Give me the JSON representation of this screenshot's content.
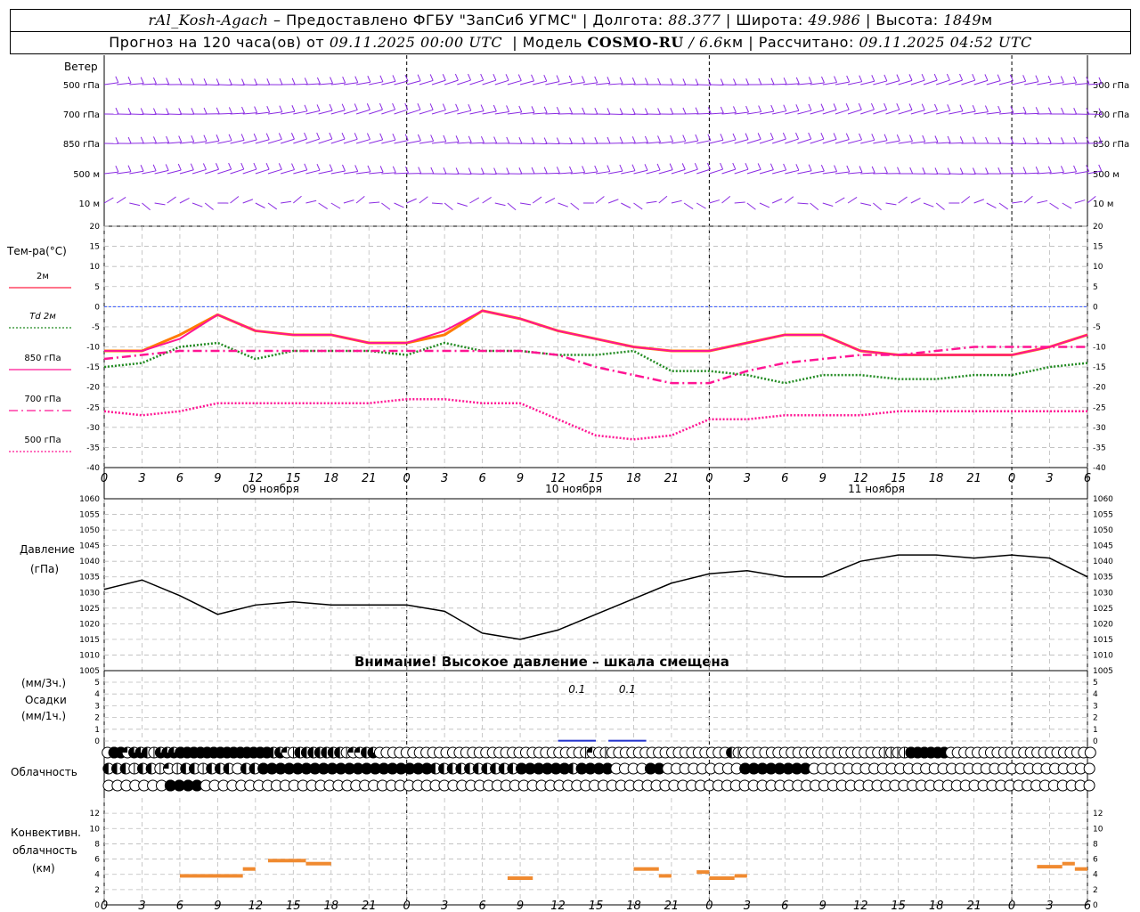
{
  "header": {
    "station": "rAl_Kosh-Agach",
    "provider": "– Предоставлено ФГБУ \"ЗапСиб УГМС\"",
    "lon_label": "Долгота:",
    "lon": "88.377",
    "lat_label": "Широта:",
    "lat": "49.986",
    "alt_label": "Высота:",
    "alt": "1849",
    "alt_unit": "м",
    "forecast_prefix": "Прогноз на 120 часа(ов) от",
    "forecast_time": "09.11.2025 00:00 UTC",
    "model_prefix": "Модель",
    "model": "COSMO-RU",
    "model_res": "/ 6.6",
    "model_res_unit": "км",
    "computed_prefix": "Рассчитано:",
    "computed_time": "09.11.2025 04:52 UTC"
  },
  "labels": {
    "wind": "Ветер",
    "temp": "Тем-ра(°С)",
    "pressure1": "Давление",
    "pressure2": "(гПа)",
    "precip1": "(мм/3ч.)",
    "precip2": "Осадки",
    "precip3": "(мм/1ч.)",
    "cloud": "Облачность",
    "conv1": "Конвективн.",
    "conv2": "облачность",
    "conv3": "(км)",
    "warning": "Внимание! Высокое давление – шкала смещена"
  },
  "wind_levels": [
    "500 гПа",
    "700 гПа",
    "850 гПа",
    "500 м",
    "10 м"
  ],
  "temp_legend": [
    {
      "label": "2м",
      "color": "#ff2244",
      "style": "solid"
    },
    {
      "label": "Td 2м",
      "color": "#228b22",
      "style": "dotted"
    },
    {
      "label": "850 гПа",
      "color": "#ff1493",
      "style": "solid"
    },
    {
      "label": "700 гПа",
      "color": "#ff1493",
      "style": "dashdot"
    },
    {
      "label": "500 гПа",
      "color": "#ff1493",
      "style": "dotted"
    }
  ],
  "hour_ticks": [
    "0",
    "3",
    "6",
    "9",
    "12",
    "15",
    "18",
    "21",
    "0",
    "3",
    "6",
    "9",
    "12",
    "15",
    "18",
    "21",
    "0",
    "3",
    "6",
    "9",
    "12",
    "15",
    "18",
    "21",
    "0",
    "3",
    "6"
  ],
  "day_labels": [
    "09 ноября",
    "10 ноября",
    "11 ноября"
  ],
  "precip_labels": [
    "0.1",
    "0.1"
  ],
  "colors": {
    "wind": "#8a2be2",
    "pressure": "#000000",
    "convective": "#f08a30",
    "precip": "#2233cc",
    "zero_line": "#3355ff"
  },
  "chart_data": [
    {
      "type": "line",
      "title": "Тем-ра(°С)",
      "x_hours": [
        0,
        3,
        6,
        9,
        12,
        15,
        18,
        21,
        24,
        27,
        30,
        33,
        36,
        39,
        42,
        45,
        48,
        51,
        54,
        57,
        60,
        63,
        66,
        69,
        72,
        75,
        78
      ],
      "ylim": [
        -40,
        20
      ],
      "series": [
        {
          "name": "2м",
          "values": [
            -11,
            -11,
            -7,
            -2,
            -6,
            -7,
            -7,
            -9,
            -9,
            -7,
            -1,
            -3,
            -6,
            -8,
            -10,
            -11,
            -11,
            -9,
            -7,
            -7,
            -11,
            -12,
            -12,
            -12,
            -12,
            -10,
            -7
          ]
        },
        {
          "name": "Td 2м",
          "values": [
            -15,
            -14,
            -10,
            -9,
            -13,
            -11,
            -11,
            -11,
            -12,
            -9,
            -11,
            -11,
            -12,
            -12,
            -11,
            -16,
            -16,
            -17,
            -19,
            -17,
            -17,
            -18,
            -18,
            -17,
            -17,
            -15,
            -14
          ]
        },
        {
          "name": "850 гПа",
          "values": [
            -11,
            -11,
            -8,
            -2,
            -6,
            -7,
            -7,
            -9,
            -9,
            -6,
            -1,
            -3,
            -6,
            -8,
            -10,
            -11,
            -11,
            -9,
            -7,
            -7,
            -11,
            -12,
            -12,
            -12,
            -12,
            -10,
            -7
          ]
        },
        {
          "name": "700 гПа",
          "values": [
            -13,
            -12,
            -11,
            -11,
            -11,
            -11,
            -11,
            -11,
            -11,
            -11,
            -11,
            -11,
            -12,
            -15,
            -17,
            -19,
            -19,
            -16,
            -14,
            -13,
            -12,
            -12,
            -11,
            -10,
            -10,
            -10,
            -10
          ]
        },
        {
          "name": "500 гПа",
          "values": [
            -26,
            -27,
            -26,
            -24,
            -24,
            -24,
            -24,
            -24,
            -23,
            -23,
            -24,
            -24,
            -28,
            -32,
            -33,
            -32,
            -28,
            -28,
            -27,
            -27,
            -27,
            -26,
            -26,
            -26,
            -26,
            -26,
            -26
          ]
        }
      ]
    },
    {
      "type": "line",
      "title": "Давление (гПа)",
      "x_hours": [
        0,
        3,
        6,
        9,
        12,
        15,
        18,
        21,
        24,
        27,
        30,
        33,
        36,
        39,
        42,
        45,
        48,
        51,
        54,
        57,
        60,
        63,
        66,
        69,
        72,
        75,
        78
      ],
      "ylim": [
        1005,
        1060
      ],
      "series": [
        {
          "name": "Давление",
          "values": [
            1031,
            1034,
            1029,
            1023,
            1026,
            1027,
            1026,
            1026,
            1026,
            1024,
            1017,
            1015,
            1018,
            1023,
            1028,
            1033,
            1036,
            1037,
            1035,
            1035,
            1040,
            1042,
            1042,
            1041,
            1042,
            1041,
            1035
          ]
        }
      ]
    },
    {
      "type": "bar",
      "title": "Осадки",
      "ylim": [
        0,
        5
      ],
      "bars": [
        {
          "x": [
            36,
            39
          ],
          "value": 0.1,
          "label": "0.1"
        },
        {
          "x": [
            40,
            43
          ],
          "value": 0.1,
          "label": "0.1"
        }
      ]
    },
    {
      "type": "bar",
      "title": "Конвективн. облачность (км)",
      "ylim": [
        0,
        14
      ],
      "segments": [
        {
          "x": [
            6,
            11
          ],
          "value": 3.8
        },
        {
          "x": [
            11,
            12
          ],
          "value": 4.7
        },
        {
          "x": [
            13,
            16
          ],
          "value": 5.8
        },
        {
          "x": [
            16,
            18
          ],
          "value": 5.4
        },
        {
          "x": [
            32,
            34
          ],
          "value": 3.5
        },
        {
          "x": [
            42,
            44
          ],
          "value": 4.7
        },
        {
          "x": [
            44,
            45
          ],
          "value": 3.8
        },
        {
          "x": [
            47,
            48
          ],
          "value": 4.3
        },
        {
          "x": [
            48,
            50
          ],
          "value": 3.5
        },
        {
          "x": [
            50,
            51
          ],
          "value": 3.8
        },
        {
          "x": [
            74,
            76
          ],
          "value": 5
        },
        {
          "x": [
            76,
            77
          ],
          "value": 5.4
        },
        {
          "x": [
            77,
            78
          ],
          "value": 4.7
        }
      ]
    }
  ],
  "ticks": {
    "temp": [
      "20",
      "15",
      "10",
      "5",
      "0",
      "-5",
      "-10",
      "-15",
      "-20",
      "-25",
      "-30",
      "-35",
      "-40"
    ],
    "pressure": [
      "1060",
      "1055",
      "1050",
      "1045",
      "1040",
      "1035",
      "1030",
      "1025",
      "1020",
      "1015",
      "1010",
      "1005"
    ],
    "precip": [
      "5",
      "4",
      "3",
      "2",
      "1",
      "0"
    ],
    "conv": [
      "12",
      "10",
      "8",
      "6",
      "4",
      "2",
      "0"
    ]
  },
  "cloud_rows": [
    "0ffq22h1222ffffffffffffffh2q1hhhhhhh1qqh200000000000000000000000000000001q01000000000000000000h10000000000000000000001111ffffff0000000000000000000000",
    "hhh1hh1q1hh1hhh0hhffffffffffffffffffffhhhhhhhhhhffffffhffff0000ff000000000ffffffff000000000000000000000000000000000",
    "0000000ffff00000000000000000000000000000000000000000000000000000000000000000000000000000000000000000000000000000"
  ]
}
